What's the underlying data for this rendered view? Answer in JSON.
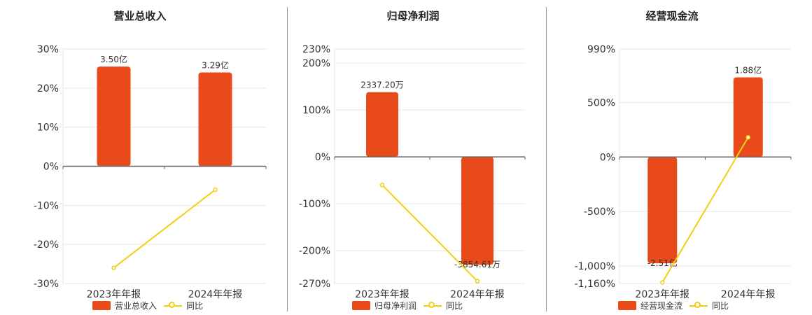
{
  "colors": {
    "bar": "#E84A1A",
    "line": "#F2CF14",
    "grid": "#E6E6E6",
    "axis": "#666666",
    "text": "#333333"
  },
  "chart_data": [
    {
      "type": "bar",
      "title": "营业总收入",
      "categories": [
        "2023年年报",
        "2024年年报"
      ],
      "series": [
        {
          "name": "营业总收入",
          "type": "bar",
          "values": [
            25.5,
            24.0
          ],
          "labels": [
            "3.50亿",
            "3.29亿"
          ]
        },
        {
          "name": "同比",
          "type": "line",
          "values": [
            -26,
            -6
          ]
        }
      ],
      "ylim": [
        -30,
        30
      ],
      "yticks": [
        30,
        20,
        10,
        0,
        -10,
        -20,
        -30
      ],
      "ytick_labels": [
        "30%",
        "20%",
        "10%",
        "0%",
        "-10%",
        "-20%",
        "-30%"
      ],
      "grid": true,
      "legend": "bottom"
    },
    {
      "type": "bar",
      "title": "归母净利润",
      "categories": [
        "2023年年报",
        "2024年年报"
      ],
      "series": [
        {
          "name": "归母净利润",
          "type": "bar",
          "values": [
            138,
            -230
          ],
          "labels": [
            "2337.20万",
            "-3854.61万"
          ]
        },
        {
          "name": "同比",
          "type": "line",
          "values": [
            -60,
            -265
          ]
        }
      ],
      "ylim": [
        -270,
        230
      ],
      "yticks": [
        230,
        200,
        100,
        0,
        -100,
        -200,
        -270
      ],
      "ytick_labels": [
        "230%",
        "200%",
        "100%",
        "0%",
        "-100%",
        "-200%",
        "-270%"
      ],
      "grid": true,
      "legend": "bottom"
    },
    {
      "type": "bar",
      "title": "经营现金流",
      "categories": [
        "2023年年报",
        "2024年年报"
      ],
      "series": [
        {
          "name": "经营现金流",
          "type": "bar",
          "values": [
            -975,
            730
          ],
          "labels": [
            "-2.51亿",
            "1.88亿"
          ]
        },
        {
          "name": "同比",
          "type": "line",
          "values": [
            -1150,
            180
          ]
        }
      ],
      "ylim": [
        -1160,
        990
      ],
      "yticks": [
        990,
        500,
        0,
        -500,
        -1000,
        -1160
      ],
      "ytick_labels": [
        "990%",
        "500%",
        "0%",
        "-500%",
        "-1,000%",
        "-1,160%"
      ],
      "grid": true,
      "legend": "bottom"
    }
  ]
}
